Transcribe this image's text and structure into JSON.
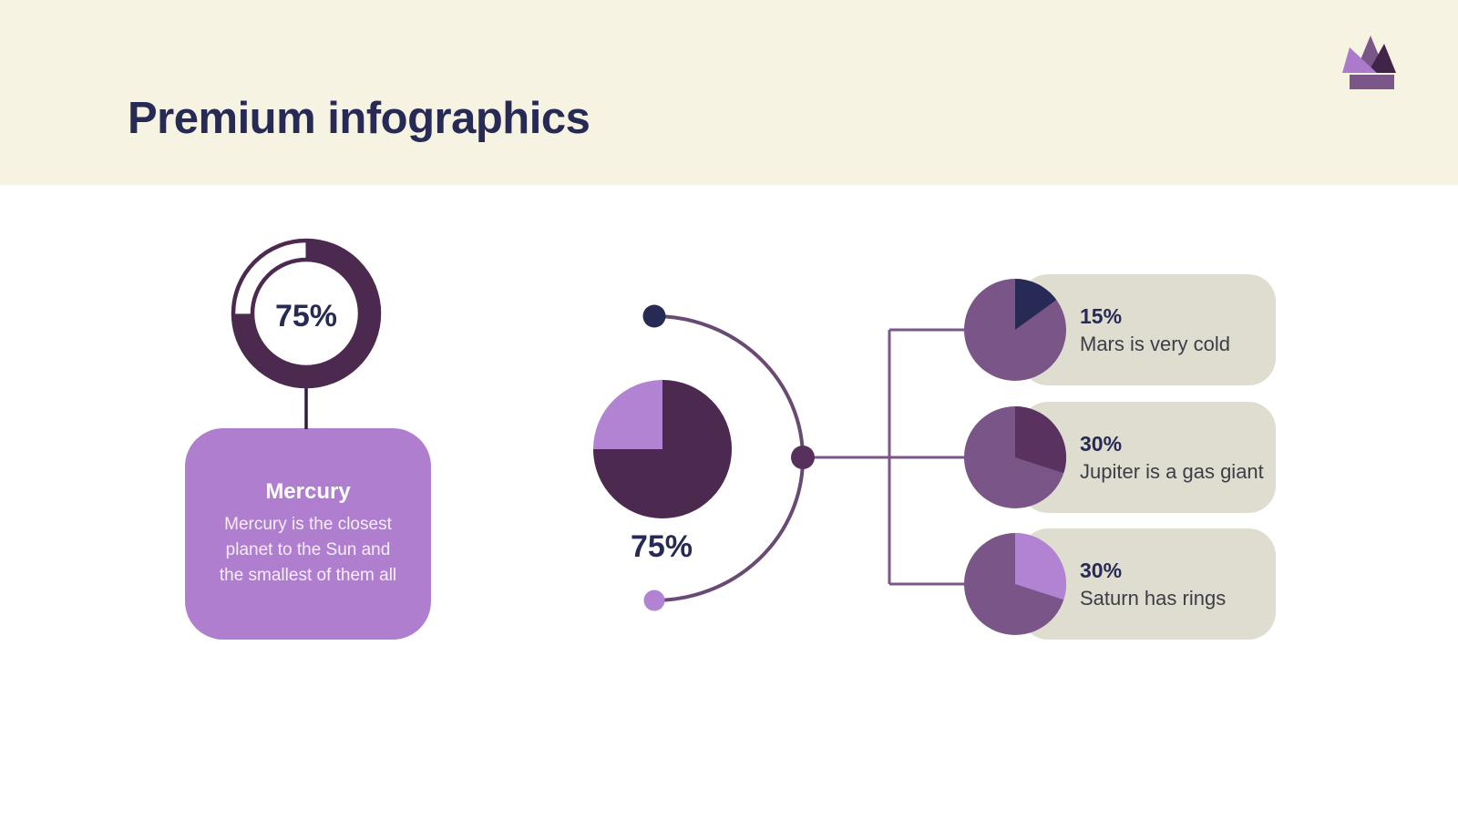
{
  "palette": {
    "cream": "#f7f3e3",
    "navy": "#262a54",
    "plum": "#4c2a50",
    "purple": "#7a5588",
    "light": "#b07ecf",
    "lightslice": "#b283d2",
    "beige": "#dfddcf",
    "arc": "#694a72",
    "connector": "#7b5689",
    "middot": "#57305c",
    "stem": "#331b3b"
  },
  "header": {
    "title": "Premium infographics",
    "crown_icon": "premium-crown",
    "crown_colors": {
      "left": "#ab7aca",
      "middle": "#7b5689",
      "right": "#432449",
      "band": "#7b5689"
    }
  },
  "left_group": {
    "donut": {
      "percent": 75,
      "label": "75%",
      "ring_color": "#4c2a50"
    },
    "card": {
      "title": "Mercury",
      "body_lines": [
        "Mercury is the closest",
        "planet to the Sun and",
        "the smallest of them all"
      ]
    }
  },
  "center_group": {
    "pie": {
      "percent": 75,
      "label": "75%",
      "slice_color": "#4c2a50",
      "base_color": "#b283d2"
    }
  },
  "right_group": {
    "rows": [
      {
        "percent": 15,
        "percent_label": "15%",
        "text": "Mars is very cold",
        "base_color": "#7a5588",
        "slice_color": "#272a54"
      },
      {
        "percent": 30,
        "percent_label": "30%",
        "text": "Jupiter is a gas giant",
        "base_color": "#7a5588",
        "slice_color": "#5a3260"
      },
      {
        "percent": 30,
        "percent_label": "30%",
        "text": "Saturn has rings",
        "base_color": "#7a5588",
        "slice_color": "#b283d2"
      }
    ]
  },
  "chart_data": [
    {
      "type": "donut",
      "label": "75%",
      "value": 75,
      "remainder": 25,
      "caption": "Mercury"
    },
    {
      "type": "pie",
      "label": "75%",
      "value": 75,
      "remainder": 25
    },
    {
      "type": "pie",
      "label": "15%",
      "value": 15,
      "remainder": 85,
      "caption": "Mars is very cold"
    },
    {
      "type": "pie",
      "label": "30%",
      "value": 30,
      "remainder": 70,
      "caption": "Jupiter is a gas giant"
    },
    {
      "type": "pie",
      "label": "30%",
      "value": 30,
      "remainder": 70,
      "caption": "Saturn has rings"
    }
  ]
}
